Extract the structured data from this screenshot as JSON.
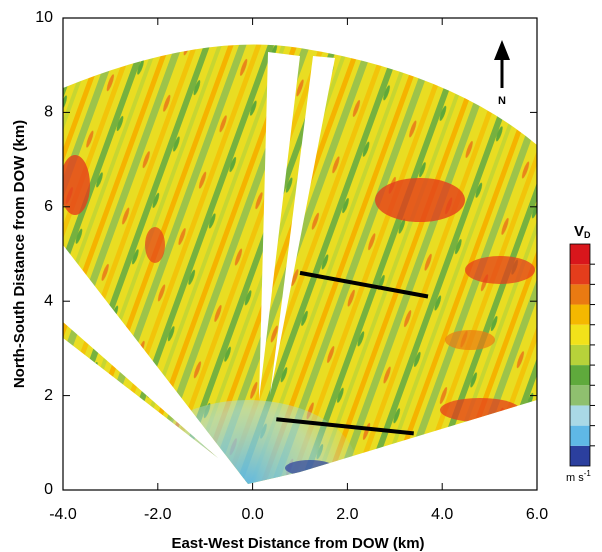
{
  "chart_data": {
    "type": "radar",
    "xlabel": "East-West Distance from DOW (km)",
    "ylabel": "North-South Distance from DOW (km)",
    "xlim": [
      -4,
      6
    ],
    "xticks": [
      {
        "value": -4,
        "label": "-4.0"
      },
      {
        "value": -2,
        "label": "-2.0"
      },
      {
        "value": 0,
        "label": "0.0"
      },
      {
        "value": 2,
        "label": "2.0"
      },
      {
        "value": 4,
        "label": "4.0"
      },
      {
        "value": 6,
        "label": "6.0"
      }
    ],
    "ylim": [
      0,
      10
    ],
    "yticks": [
      0,
      2,
      4,
      6,
      8,
      10
    ],
    "north_label": "N",
    "colorbar": {
      "label": "V",
      "label_sub": "D",
      "unit": "m s",
      "unit_sup": "-1",
      "colors": [
        "#2b3f9e",
        "#5fb8e6",
        "#a9d9e6",
        "#8fc06f",
        "#5faa3c",
        "#b7d23a",
        "#f2e21a",
        "#f5b800",
        "#ea7a12",
        "#e43d1c",
        "#d9161c"
      ]
    },
    "lines": [
      {
        "x": [
          1.0,
          3.7
        ],
        "y": [
          4.6,
          4.1
        ]
      },
      {
        "x": [
          0.5,
          3.4
        ],
        "y": [
          1.5,
          1.2
        ]
      }
    ]
  }
}
